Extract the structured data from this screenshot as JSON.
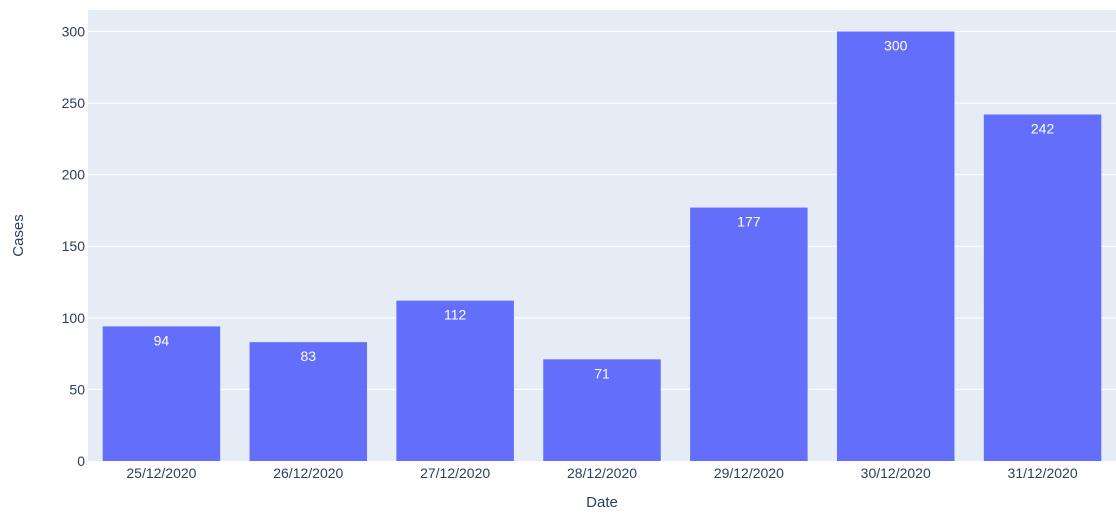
{
  "chart_data": {
    "type": "bar",
    "categories": [
      "25/12/2020",
      "26/12/2020",
      "27/12/2020",
      "28/12/2020",
      "29/12/2020",
      "30/12/2020",
      "31/12/2020"
    ],
    "values": [
      94,
      83,
      112,
      71,
      177,
      300,
      242
    ],
    "data_labels": [
      "94",
      "83",
      "112",
      "71",
      "177",
      "300",
      "242"
    ],
    "xlabel": "Date",
    "ylabel": "Cases",
    "yticks": [
      0,
      50,
      100,
      150,
      200,
      250,
      300
    ],
    "ylim": [
      0,
      315
    ],
    "grid": true,
    "colors": {
      "bar": "#636efa",
      "plot_bg": "#e5ecf6",
      "grid": "#ffffff",
      "tick_text": "#2a3f5f",
      "label_text": "#2a3f5f",
      "data_label_text": "#ffffff"
    }
  }
}
